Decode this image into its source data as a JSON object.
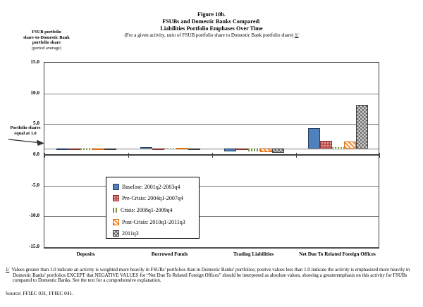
{
  "header": {
    "line1": "Figure 10b.",
    "line2": "FSUBs and Domestic Banks Compared:",
    "line3": "Liabilities Portfolio Emphases Over Time",
    "line4_pre": "(For a given activity, ratio of FSUB portfolio share to Domestic Bank portfolio share)",
    "line4_ref": "1/"
  },
  "y_axis_title": {
    "line1": "FSUB portfolio",
    "line2": "share-to-Domestic Bank",
    "line3": "portfolio share",
    "line4": "(period average)"
  },
  "annotation": {
    "line1": "Portfolio shares",
    "line2": "equal at 1.0"
  },
  "chart_data": {
    "type": "bar",
    "title": "Figure 10b. FSUBs and Domestic Banks Compared: Liabilities Portfolio Emphases Over Time",
    "categories": [
      "Deposits",
      "Borrowed Funds",
      "Trading Liabilities",
      "Net Due To Related Foreign Offices"
    ],
    "series": [
      {
        "name": "Baseline: 2001q2-2003q4",
        "color": "#4F81BD",
        "pattern": "solid",
        "values": [
          1.0,
          1.3,
          0.6,
          4.3
        ]
      },
      {
        "name": "Pre-Crisis: 2004q1-2007q4",
        "color": "#C0504D",
        "pattern": "dots",
        "values": [
          1.0,
          1.05,
          0.8,
          2.35
        ]
      },
      {
        "name": "Crisis: 2008q1-2009q4",
        "color": "#9BBB59",
        "pattern": "vertical",
        "values": [
          0.95,
          1.2,
          0.6,
          1.3
        ]
      },
      {
        "name": "Post-Crisis: 2010q1-2011q3",
        "color": "#F79646",
        "pattern": "diagonal",
        "values": [
          0.95,
          1.15,
          0.45,
          2.2
        ]
      },
      {
        "name": "2011q3",
        "color": "#808080",
        "pattern": "checker",
        "values": [
          0.9,
          0.85,
          0.35,
          8.1
        ]
      }
    ],
    "baseline": 1.0,
    "ylim": [
      -15,
      15
    ],
    "yticks": [
      {
        "value": 15,
        "label": "15.0"
      },
      {
        "value": 10,
        "label": "10.0"
      },
      {
        "value": 5,
        "label": "5.0"
      },
      {
        "value": 0,
        "label": "0.0"
      },
      {
        "value": -5,
        "label": "-5.0"
      },
      {
        "value": -10,
        "label": "-10.0"
      },
      {
        "value": -15,
        "label": "-15.0"
      }
    ],
    "grid": "horizontal",
    "legend_position": "inside-bottom-left",
    "colors": {
      "baseline_reference_line": "#D9D9D9",
      "zero_line": "#404040",
      "gridline": "#7F7F7F",
      "plot_border": "#404040"
    }
  },
  "footnote": {
    "ref": "1/",
    "text": "Values greater than 1.0 indicate an activity is weighted more heavily in FSUBs' portfolios than in Domestic Banks' portfolios; positve values less than 1.0 indicate the activity is emphasized more heavily in Domestic Banks' portfolios EXCEPT that NEGATIVE VALUES for “Net Due To Related Foreign Offices” should be interpreted as absolute values, showing a greateremphasis on this activity for FSUBs compared to Domestic Banks.  See the text for a comprehensive explanation."
  },
  "source_line": "Source: FFIEC 031, FFIEC 041."
}
